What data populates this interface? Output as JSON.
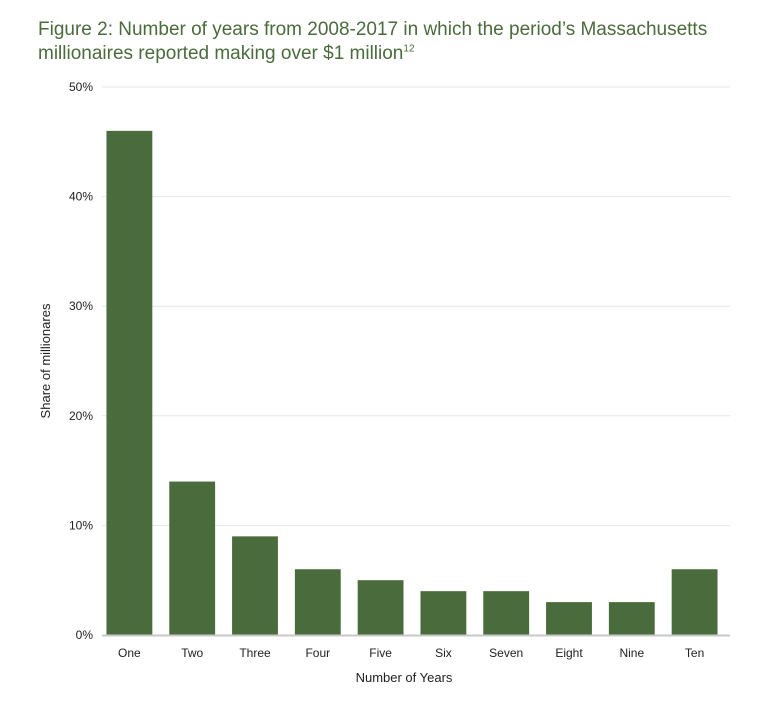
{
  "header": {
    "title": "Figure 2: Number of years from 2008-2017 in which the period’s Massachusetts millionaires reported making over $1 million",
    "footnote": "12"
  },
  "colors": {
    "title": "#4a6b3c",
    "bar": "#4a6b3c",
    "grid": "#e6e6e6",
    "axis": "#c8c8c8"
  },
  "chart_data": {
    "type": "bar",
    "categories": [
      "One",
      "Two",
      "Three",
      "Four",
      "Five",
      "Six",
      "Seven",
      "Eight",
      "Nine",
      "Ten"
    ],
    "values": [
      46,
      14,
      9,
      6,
      5,
      4,
      4,
      3,
      3,
      6
    ],
    "xlabel": "Number of Years",
    "ylabel": "Share of millionares",
    "ylim": [
      0,
      50
    ],
    "yticks": [
      0,
      10,
      20,
      30,
      40,
      50
    ],
    "ytick_labels": [
      "0%",
      "10%",
      "20%",
      "30%",
      "40%",
      "50%"
    ],
    "grid": true,
    "legend": "none"
  }
}
